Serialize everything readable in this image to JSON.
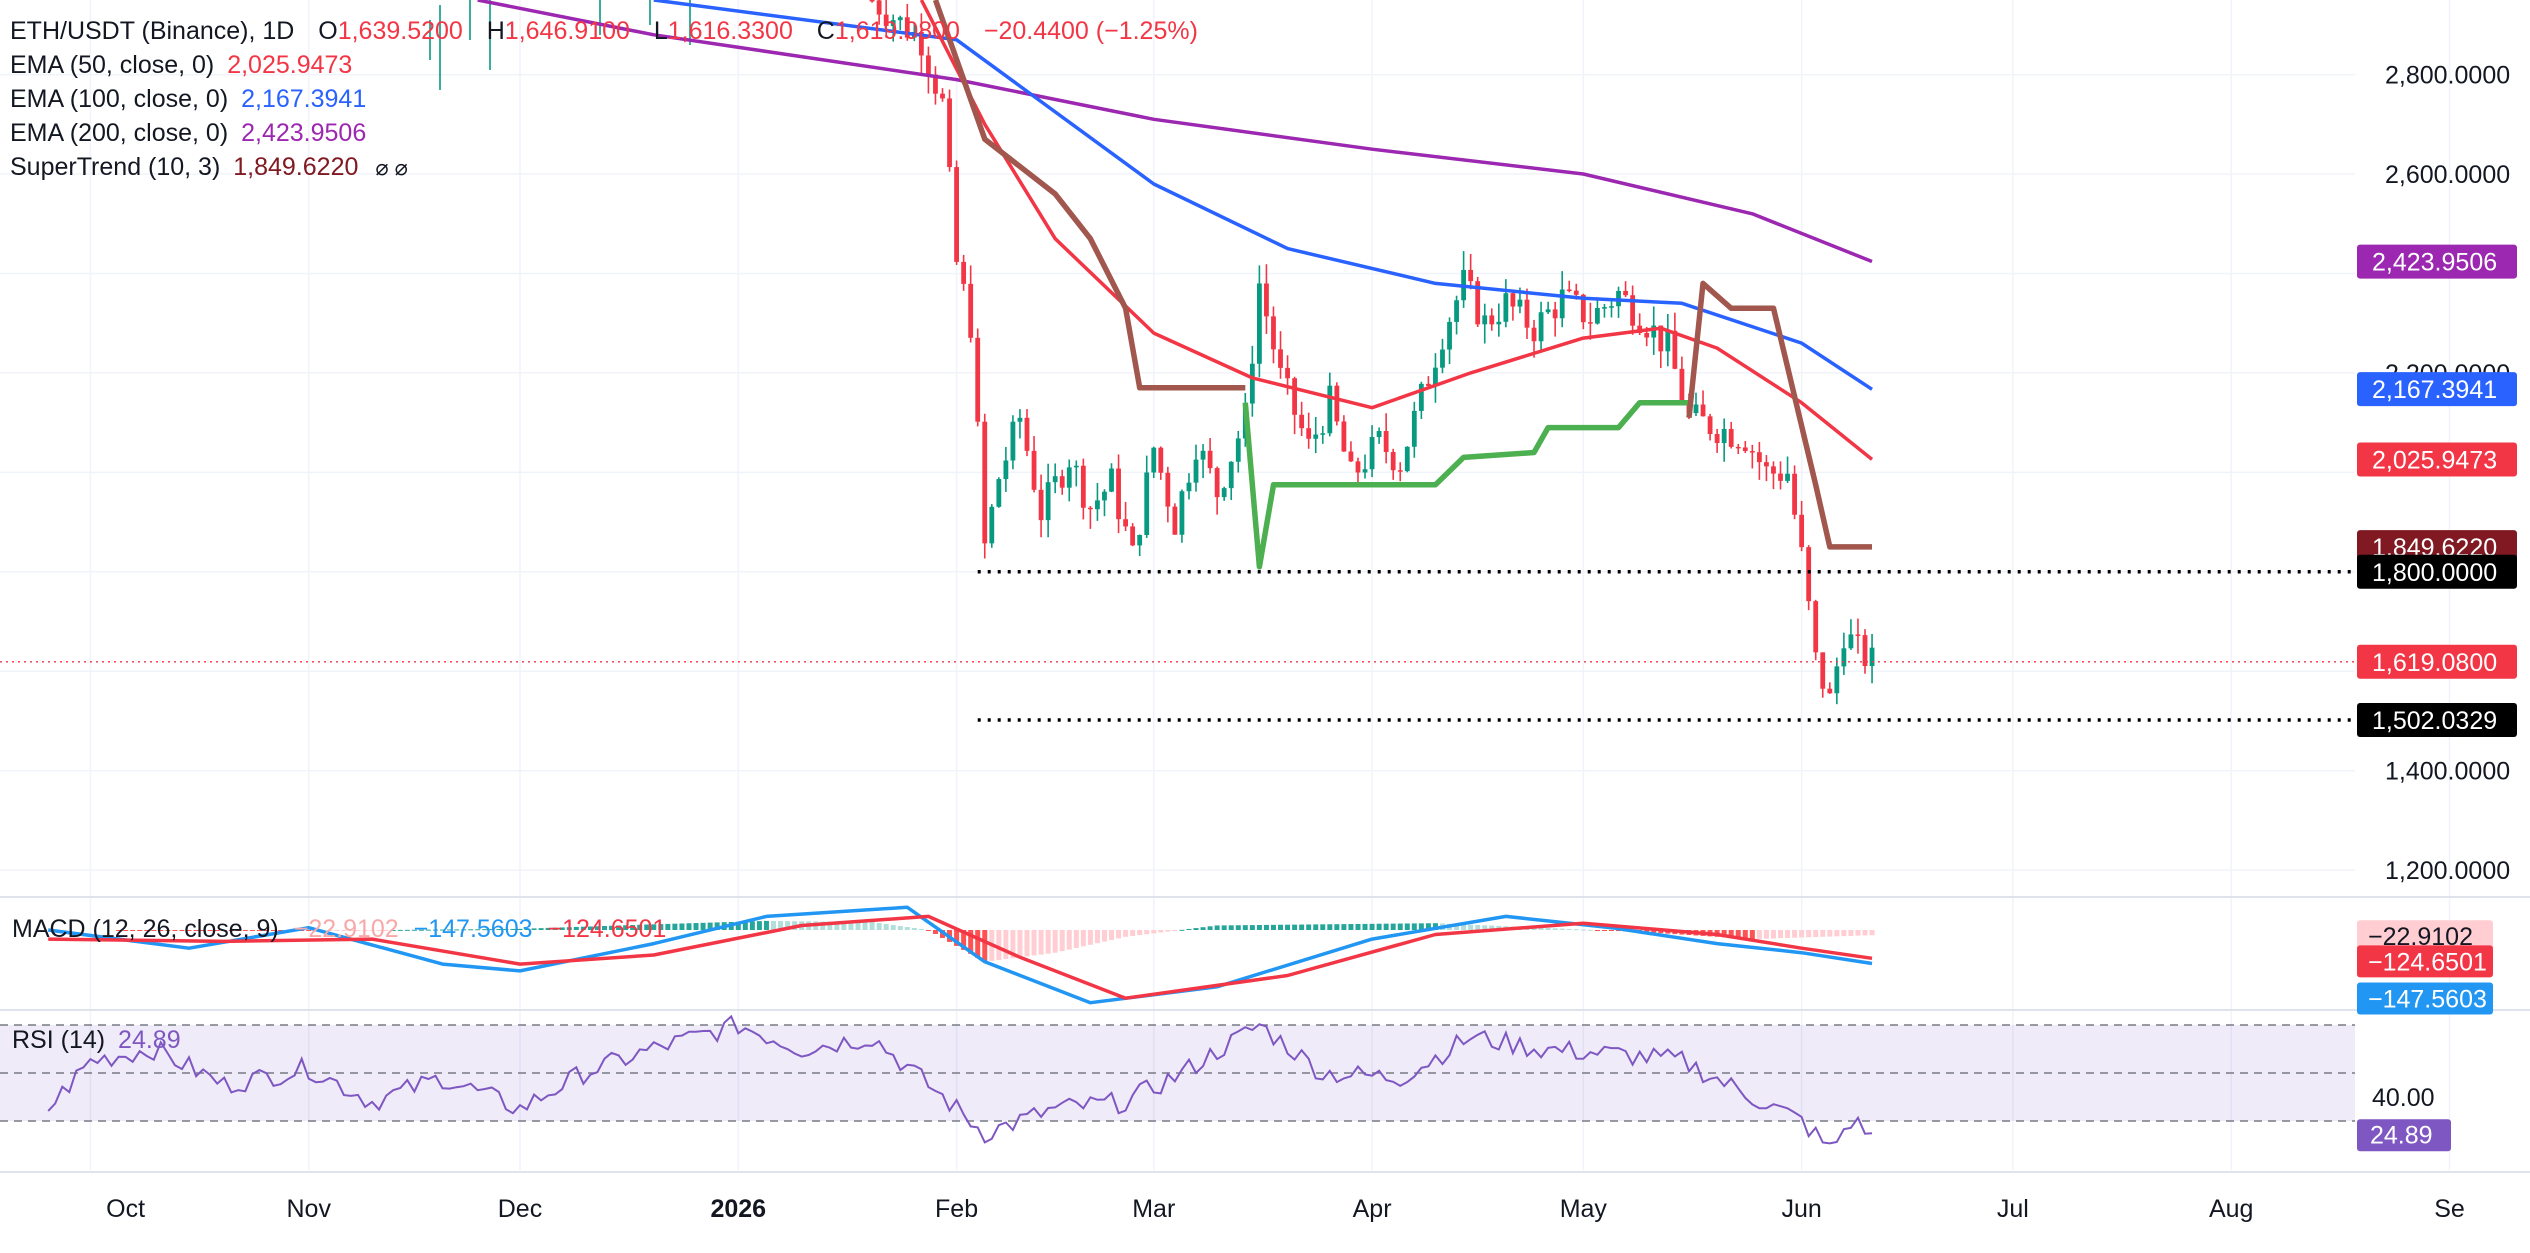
{
  "header": {
    "symbol": "ETH/USDT (Binance), 1D",
    "o_label": "O",
    "o_value": "1,639.5200",
    "h_label": "H",
    "h_value": "1,646.9100",
    "l_label": "L",
    "l_value": "1,616.3300",
    "c_label": "C",
    "c_value": "1,619.0800",
    "change": "−20.4400 (−1.25%)"
  },
  "indicators": [
    {
      "label": "EMA (50, close, 0)",
      "value": "2,025.9473",
      "color": "#f23645"
    },
    {
      "label": "EMA (100, close, 0)",
      "value": "2,167.3941",
      "color": "#2962ff"
    },
    {
      "label": "EMA (200, close, 0)",
      "value": "2,423.9506",
      "color": "#9c27b0"
    },
    {
      "label": "SuperTrend (10, 3)",
      "value": "1,849.6220",
      "color": "#801922",
      "flags": "⌀ ⌀"
    }
  ],
  "macd_legend": {
    "label": "MACD (12, 26, close, 9)",
    "hist": "−22.9102",
    "macd": "−147.5603",
    "signal": "−124.6501"
  },
  "rsi_legend": {
    "label": "RSI (14)",
    "value": "24.89"
  },
  "chart_data": {
    "type": "candlestick",
    "x_ticks": [
      "Oct",
      "Nov",
      "Dec",
      "2026",
      "Feb",
      "Mar",
      "Apr",
      "May",
      "Jun",
      "Jul",
      "Aug",
      "Se"
    ],
    "y_ticks": [
      "2,800.0000",
      "2,600.0000",
      "2,200.0000",
      "1,400.0000",
      "1,200.0000"
    ],
    "ylim": [
      1150,
      2950
    ],
    "price_badges": [
      {
        "value": "2,423.9506",
        "price": 2423.95,
        "color": "#9c27b0"
      },
      {
        "value": "2,167.3941",
        "price": 2167.39,
        "color": "#2962ff"
      },
      {
        "value": "2,025.9473",
        "price": 2025.95,
        "color": "#f23645"
      },
      {
        "value": "1,849.6220",
        "price": 1849.62,
        "color": "#801922"
      },
      {
        "value": "1,800.0000",
        "price": 1800,
        "color": "#000000"
      },
      {
        "value": "1,619.0800",
        "price": 1619.08,
        "color": "#f23645"
      },
      {
        "value": "1,502.0329",
        "price": 1502.03,
        "color": "#000000"
      }
    ],
    "horizontal_levels": [
      {
        "price": 1800,
        "from_date": "2026-02-04",
        "style": "dotted"
      },
      {
        "price": 1502.03,
        "from_date": "2026-02-04",
        "style": "dotted"
      }
    ],
    "last_price": 1619.08,
    "price_points": [
      [
        "2026-01-20",
        2950
      ],
      [
        "2026-01-27",
        2870
      ],
      [
        "2026-01-30",
        2740
      ],
      [
        "2026-02-01",
        2420
      ],
      [
        "2026-02-03",
        2300
      ],
      [
        "2026-02-05",
        1850
      ],
      [
        "2026-02-07",
        1990
      ],
      [
        "2026-02-10",
        2110
      ],
      [
        "2026-02-13",
        1920
      ],
      [
        "2026-02-17",
        2030
      ],
      [
        "2026-02-20",
        1930
      ],
      [
        "2026-02-23",
        1980
      ],
      [
        "2026-02-26",
        1830
      ],
      [
        "2026-03-01",
        2050
      ],
      [
        "2026-03-04",
        1900
      ],
      [
        "2026-03-07",
        2060
      ],
      [
        "2026-03-10",
        1960
      ],
      [
        "2026-03-14",
        2110
      ],
      [
        "2026-03-16",
        2380
      ],
      [
        "2026-03-19",
        2190
      ],
      [
        "2026-03-23",
        2050
      ],
      [
        "2026-03-26",
        2140
      ],
      [
        "2026-03-29",
        1990
      ],
      [
        "2026-04-02",
        2060
      ],
      [
        "2026-04-05",
        2020
      ],
      [
        "2026-04-08",
        2150
      ],
      [
        "2026-04-11",
        2280
      ],
      [
        "2026-04-14",
        2380
      ],
      [
        "2026-04-17",
        2300
      ],
      [
        "2026-04-20",
        2340
      ],
      [
        "2026-04-24",
        2290
      ],
      [
        "2026-04-28",
        2350
      ],
      [
        "2026-05-02",
        2310
      ],
      [
        "2026-05-06",
        2360
      ],
      [
        "2026-05-10",
        2300
      ],
      [
        "2026-05-13",
        2250
      ],
      [
        "2026-05-16",
        2110
      ],
      [
        "2026-05-20",
        2090
      ],
      [
        "2026-05-24",
        2070
      ],
      [
        "2026-05-27",
        2000
      ],
      [
        "2026-05-30",
        2000
      ],
      [
        "2026-06-01",
        1830
      ],
      [
        "2026-06-03",
        1620
      ],
      [
        "2026-06-05",
        1540
      ],
      [
        "2026-06-07",
        1680
      ],
      [
        "2026-06-09",
        1640
      ],
      [
        "2026-06-11",
        1619
      ]
    ],
    "ema50": [
      [
        "2026-01-27",
        2950
      ],
      [
        "2026-02-05",
        2700
      ],
      [
        "2026-02-15",
        2470
      ],
      [
        "2026-03-01",
        2280
      ],
      [
        "2026-03-15",
        2190
      ],
      [
        "2026-04-01",
        2130
      ],
      [
        "2026-04-15",
        2200
      ],
      [
        "2026-05-01",
        2270
      ],
      [
        "2026-05-12",
        2290
      ],
      [
        "2026-05-20",
        2250
      ],
      [
        "2026-06-01",
        2140
      ],
      [
        "2026-06-11",
        2026
      ]
    ],
    "ema100": [
      [
        "2025-12-20",
        2950
      ],
      [
        "2026-02-01",
        2870
      ],
      [
        "2026-03-01",
        2580
      ],
      [
        "2026-03-20",
        2450
      ],
      [
        "2026-04-10",
        2380
      ],
      [
        "2026-05-01",
        2350
      ],
      [
        "2026-05-15",
        2340
      ],
      [
        "2026-06-01",
        2260
      ],
      [
        "2026-06-11",
        2167
      ]
    ],
    "ema200": [
      [
        "2025-11-25",
        2950
      ],
      [
        "2025-12-20",
        2880
      ],
      [
        "2026-02-01",
        2790
      ],
      [
        "2026-03-01",
        2710
      ],
      [
        "2026-04-01",
        2650
      ],
      [
        "2026-05-01",
        2600
      ],
      [
        "2026-05-25",
        2520
      ],
      [
        "2026-06-11",
        2424
      ]
    ],
    "supertrend": [
      {
        "trend": "down",
        "points": [
          [
            "2026-01-29",
            2950
          ],
          [
            "2026-02-05",
            2670
          ],
          [
            "2026-02-15",
            2560
          ],
          [
            "2026-02-20",
            2470
          ],
          [
            "2026-02-25",
            2330
          ],
          [
            "2026-02-27",
            2170
          ],
          [
            "2026-03-14",
            2170
          ]
        ]
      },
      {
        "trend": "up",
        "points": [
          [
            "2026-03-14",
            2140
          ],
          [
            "2026-03-16",
            1810
          ],
          [
            "2026-03-18",
            1975
          ],
          [
            "2026-04-10",
            1975
          ],
          [
            "2026-04-14",
            2030
          ],
          [
            "2026-04-24",
            2040
          ],
          [
            "2026-04-26",
            2090
          ],
          [
            "2026-05-06",
            2090
          ],
          [
            "2026-05-09",
            2140
          ],
          [
            "2026-05-16",
            2140
          ]
        ]
      },
      {
        "trend": "down",
        "points": [
          [
            "2026-05-16",
            2110
          ],
          [
            "2026-05-18",
            2380
          ],
          [
            "2026-05-22",
            2330
          ],
          [
            "2026-05-28",
            2330
          ],
          [
            "2026-06-03",
            1975
          ],
          [
            "2026-06-05",
            1850
          ],
          [
            "2026-06-11",
            1850
          ]
        ]
      }
    ],
    "macd": {
      "hist": [
        [
          "2025-10-05",
          -2
        ],
        [
          "2025-11-01",
          -3
        ],
        [
          "2025-12-01",
          5
        ],
        [
          "2025-12-20",
          25
        ],
        [
          "2026-01-05",
          40
        ],
        [
          "2026-01-20",
          35
        ],
        [
          "2026-01-28",
          0
        ],
        [
          "2026-02-05",
          -140
        ],
        [
          "2026-02-15",
          -100
        ],
        [
          "2026-02-25",
          -30
        ],
        [
          "2026-03-10",
          20
        ],
        [
          "2026-03-25",
          25
        ],
        [
          "2026-04-10",
          30
        ],
        [
          "2026-04-25",
          10
        ],
        [
          "2026-05-10",
          -10
        ],
        [
          "2026-05-25",
          -40
        ],
        [
          "2026-06-11",
          -22.91
        ]
      ],
      "macd_line": [
        [
          "2025-09-25",
          0
        ],
        [
          "2025-10-15",
          -80
        ],
        [
          "2025-11-01",
          10
        ],
        [
          "2025-11-20",
          -150
        ],
        [
          "2025-12-01",
          -180
        ],
        [
          "2025-12-20",
          -60
        ],
        [
          "2026-01-05",
          60
        ],
        [
          "2026-01-25",
          100
        ],
        [
          "2026-02-05",
          -140
        ],
        [
          "2026-02-20",
          -320
        ],
        [
          "2026-03-10",
          -250
        ],
        [
          "2026-04-01",
          -40
        ],
        [
          "2026-04-20",
          60
        ],
        [
          "2026-05-05",
          10
        ],
        [
          "2026-05-20",
          -60
        ],
        [
          "2026-06-01",
          -100
        ],
        [
          "2026-06-11",
          -147.56
        ]
      ],
      "signal_line": [
        [
          "2025-09-25",
          -40
        ],
        [
          "2025-10-20",
          -50
        ],
        [
          "2025-11-10",
          -40
        ],
        [
          "2025-12-01",
          -150
        ],
        [
          "2025-12-20",
          -110
        ],
        [
          "2026-01-10",
          20
        ],
        [
          "2026-01-28",
          60
        ],
        [
          "2026-02-10",
          -120
        ],
        [
          "2026-02-25",
          -300
        ],
        [
          "2026-03-20",
          -200
        ],
        [
          "2026-04-10",
          -20
        ],
        [
          "2026-05-01",
          30
        ],
        [
          "2026-05-20",
          -20
        ],
        [
          "2026-06-01",
          -80
        ],
        [
          "2026-06-11",
          -124.65
        ]
      ]
    },
    "rsi": {
      "levels": [
        70,
        50,
        30
      ],
      "ylim": [
        0,
        100
      ],
      "y_ticks": [
        "40.00"
      ],
      "points": [
        [
          "2025-09-25",
          35
        ],
        [
          "2025-10-01",
          55
        ],
        [
          "2025-10-10",
          60
        ],
        [
          "2025-10-20",
          45
        ],
        [
          "2025-11-01",
          52
        ],
        [
          "2025-11-10",
          38
        ],
        [
          "2025-11-20",
          48
        ],
        [
          "2025-12-01",
          35
        ],
        [
          "2025-12-10",
          50
        ],
        [
          "2025-12-20",
          60
        ],
        [
          "2026-01-01",
          70
        ],
        [
          "2026-01-10",
          60
        ],
        [
          "2026-01-20",
          65
        ],
        [
          "2026-01-28",
          45
        ],
        [
          "2026-02-05",
          25
        ],
        [
          "2026-02-15",
          35
        ],
        [
          "2026-02-25",
          38
        ],
        [
          "2026-03-05",
          50
        ],
        [
          "2026-03-16",
          70
        ],
        [
          "2026-03-25",
          50
        ],
        [
          "2026-04-05",
          48
        ],
        [
          "2026-04-15",
          65
        ],
        [
          "2026-04-25",
          60
        ],
        [
          "2026-05-05",
          58
        ],
        [
          "2026-05-15",
          55
        ],
        [
          "2026-05-25",
          40
        ],
        [
          "2026-06-01",
          30
        ],
        [
          "2026-06-05",
          18
        ],
        [
          "2026-06-08",
          30
        ],
        [
          "2026-06-11",
          24.89
        ]
      ]
    }
  }
}
